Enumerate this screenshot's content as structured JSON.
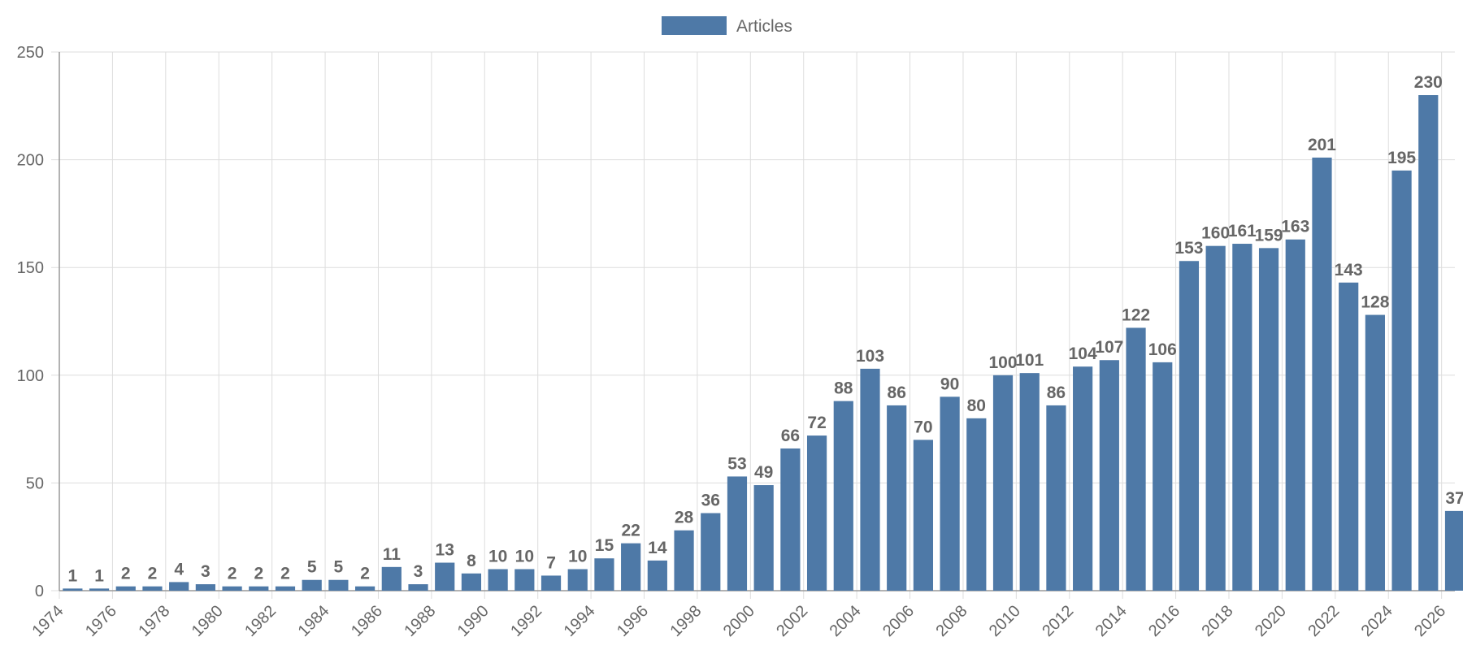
{
  "chart_data": {
    "type": "bar",
    "legend": {
      "position": "top",
      "entries": [
        "Articles"
      ]
    },
    "series": [
      {
        "name": "Articles",
        "color": "#4e79a7",
        "values": [
          1,
          1,
          2,
          2,
          4,
          3,
          2,
          2,
          2,
          5,
          5,
          2,
          11,
          3,
          13,
          8,
          10,
          10,
          7,
          10,
          15,
          22,
          14,
          28,
          36,
          53,
          49,
          66,
          72,
          88,
          103,
          86,
          70,
          90,
          80,
          100,
          101,
          86,
          104,
          107,
          122,
          106,
          153,
          160,
          161,
          159,
          163,
          201,
          143,
          128,
          195,
          230,
          37
        ]
      }
    ],
    "x": [
      1974,
      1975,
      1976,
      1977,
      1978,
      1979,
      1980,
      1981,
      1982,
      1983,
      1984,
      1985,
      1986,
      1987,
      1988,
      1989,
      1990,
      1991,
      1992,
      1993,
      1994,
      1995,
      1996,
      1997,
      1998,
      1999,
      2000,
      2001,
      2002,
      2003,
      2004,
      2005,
      2006,
      2007,
      2008,
      2009,
      2010,
      2011,
      2012,
      2013,
      2014,
      2015,
      2016,
      2017,
      2018,
      2019,
      2020,
      2021,
      2022,
      2023,
      2024,
      2025,
      2026
    ],
    "x_tick_labels": [
      "1974",
      "1976",
      "1978",
      "1980",
      "1982",
      "1984",
      "1986",
      "1988",
      "1990",
      "1992",
      "1994",
      "1996",
      "1998",
      "2000",
      "2002",
      "2004",
      "2006",
      "2008",
      "2010",
      "2012",
      "2014",
      "2016",
      "2018",
      "2020",
      "2022",
      "2024",
      "2026"
    ],
    "y_ticks": [
      0,
      50,
      100,
      150,
      200,
      250
    ],
    "ylim": [
      0,
      250
    ],
    "xlim": [
      1974,
      2026.5
    ],
    "grid": true,
    "data_labels": true
  }
}
